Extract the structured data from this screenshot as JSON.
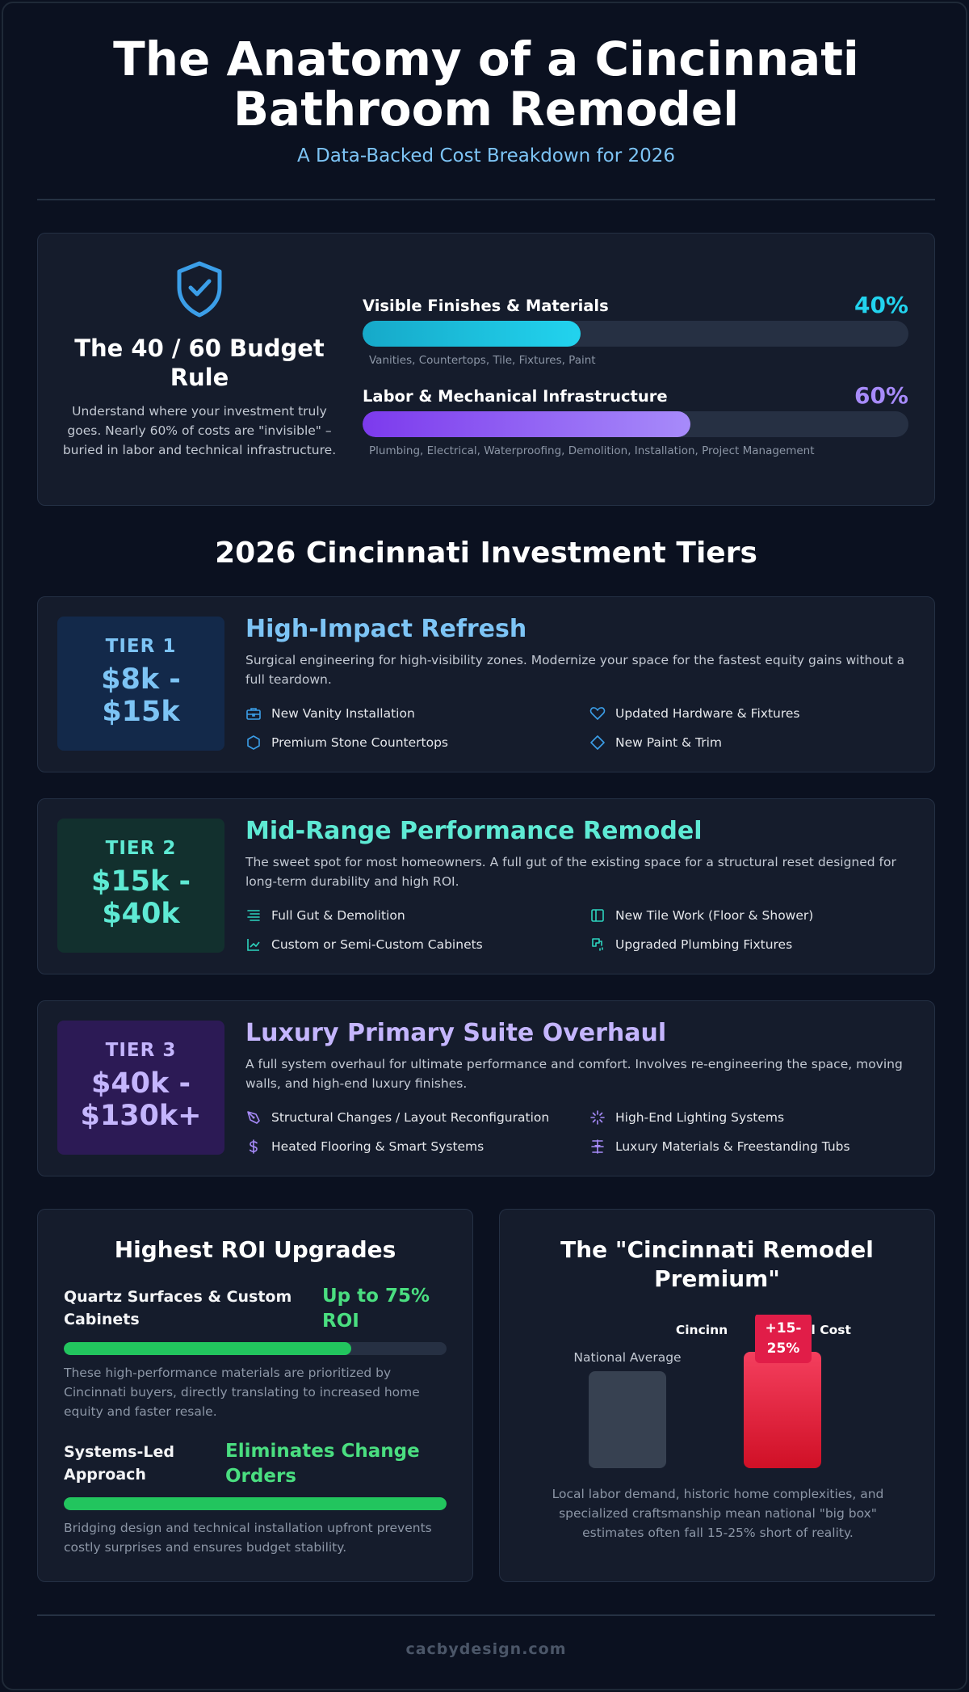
{
  "header": {
    "title_line1": "The Anatomy of a Cincinnati",
    "title_line2": "Bathroom Remodel",
    "subtitle": "A Data-Backed Cost Breakdown for 2026"
  },
  "budget_rule": {
    "icon": "shield-check-icon",
    "title": "The 40 / 60 Budget Rule",
    "description": "Understand where your investment truly goes. Nearly 60% of costs are \"invisible\" – buried in labor and technical infrastructure.",
    "bars": [
      {
        "label": "Visible Finishes & Materials",
        "percent_text": "40%",
        "value": 40,
        "detail": "Vanities, Countertops, Tile, Fixtures, Paint",
        "color": "#22d3ee"
      },
      {
        "label": "Labor & Mechanical Infrastructure",
        "percent_text": "60%",
        "value": 60,
        "detail": "Plumbing, Electrical, Waterproofing, Demolition, Installation, Project Management",
        "color": "#a78bfa"
      }
    ]
  },
  "tiers_section": {
    "title": "2026 Cincinnati Investment Tiers"
  },
  "tiers": [
    {
      "label": "TIER 1",
      "price_line1": "$8k -",
      "price_line2": "$15k",
      "title": "High-Impact Refresh",
      "description": "Surgical engineering for high-visibility zones. Modernize your space for the fastest equity gains without a full teardown.",
      "accent": "#7dc4f5",
      "features": [
        {
          "icon": "toolbox-icon",
          "text": "New Vanity Installation"
        },
        {
          "icon": "heart-icon",
          "text": "Updated Hardware & Fixtures"
        },
        {
          "icon": "hexagon-icon",
          "text": "Premium Stone Countertops"
        },
        {
          "icon": "diamond-icon",
          "text": "New Paint & Trim"
        }
      ]
    },
    {
      "label": "TIER 2",
      "price_line1": "$15k -",
      "price_line2": "$40k",
      "title": "Mid-Range Performance Remodel",
      "description": "The sweet spot for most homeowners. A full gut of the existing space for a structural reset designed for long-term durability and high ROI.",
      "accent": "#5eead4",
      "features": [
        {
          "icon": "lines-icon",
          "text": "Full Gut & Demolition"
        },
        {
          "icon": "tile-icon",
          "text": "New Tile Work (Floor & Shower)"
        },
        {
          "icon": "chart-icon",
          "text": "Custom or Semi-Custom Cabinets"
        },
        {
          "icon": "faucet-icon",
          "text": "Upgraded Plumbing Fixtures"
        }
      ]
    },
    {
      "label": "TIER 3",
      "price_line1": "$40k -",
      "price_line2": "$130k+",
      "title": "Luxury Primary Suite Overhaul",
      "description": "A full system overhaul for ultimate performance and comfort. Involves re-engineering the space, moving walls, and high-end luxury finishes.",
      "accent": "#c4b5fd",
      "features": [
        {
          "icon": "pen-tool-icon",
          "text": "Structural Changes / Layout Reconfiguration"
        },
        {
          "icon": "sparkle-icon",
          "text": "High-End Lighting Systems"
        },
        {
          "icon": "dollar-icon",
          "text": "Heated Flooring & Smart Systems"
        },
        {
          "icon": "tub-icon",
          "text": "Luxury Materials & Freestanding Tubs"
        }
      ]
    }
  ],
  "roi": {
    "title": "Highest ROI Upgrades",
    "items": [
      {
        "name_line1": "Quartz Surfaces & Custom",
        "name_line2": "Cabinets",
        "value_line1": "Up to 75%",
        "value_line2": "ROI",
        "fill": 75,
        "description": "These high-performance materials are prioritized by Cincinnati buyers, directly translating to increased home equity and faster resale."
      },
      {
        "name_line1": "Systems-Led",
        "name_line2": "Approach",
        "value_line1": "Eliminates Change",
        "value_line2": "Orders",
        "fill": 100,
        "description": "Bridging design and technical installation upfront prevents costly surprises and ensures budget stability."
      }
    ]
  },
  "premium": {
    "title_line1": "The \"Cincinnati Remodel",
    "title_line2": "Premium\"",
    "chart_data": {
      "type": "bar",
      "categories": [
        "National Average",
        "Cincinnati Actual Cost"
      ],
      "values": [
        1.0,
        1.2
      ],
      "annotation": "+15-25%",
      "colors": [
        "#374151",
        "#e11d48"
      ]
    },
    "badge_line1": "+15-",
    "badge_line2": "25%",
    "cincinnati_label_left": "Cincinn",
    "cincinnati_label_right": "al Cost",
    "national_label": "National Average",
    "description": "Local labor demand, historic home complexities, and specialized craftsmanship mean national \"big box\" estimates often fall 15-25% short of reality."
  },
  "footer": {
    "site": "cacbydesign.com"
  }
}
